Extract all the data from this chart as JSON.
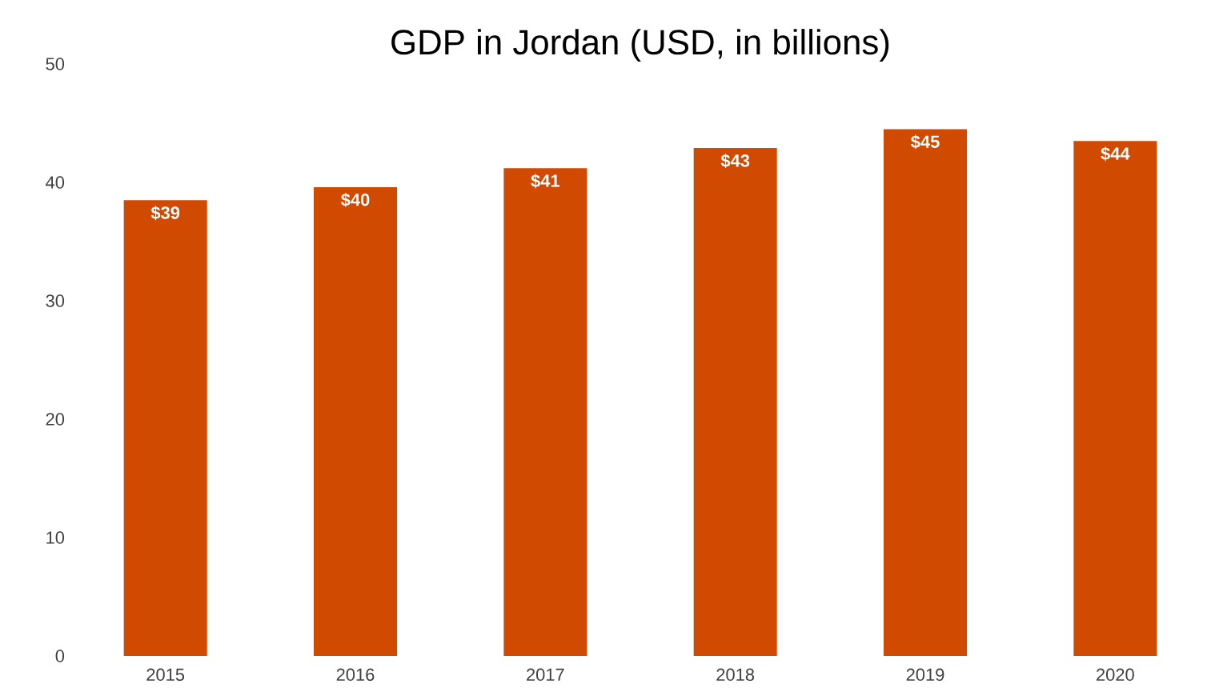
{
  "chart_data": {
    "type": "bar",
    "title": "GDP in Jordan (USD, in billions)",
    "categories": [
      "2015",
      "2016",
      "2017",
      "2018",
      "2019",
      "2020"
    ],
    "values": [
      38.5,
      39.6,
      41.2,
      42.9,
      44.5,
      43.5
    ],
    "value_labels": [
      "$39",
      "$40",
      "$41",
      "$43",
      "$45",
      "$44"
    ],
    "color": "#d04a02",
    "ylim": [
      0,
      50
    ],
    "yticks": [
      0,
      10,
      20,
      30,
      40,
      50
    ],
    "grid": false
  }
}
